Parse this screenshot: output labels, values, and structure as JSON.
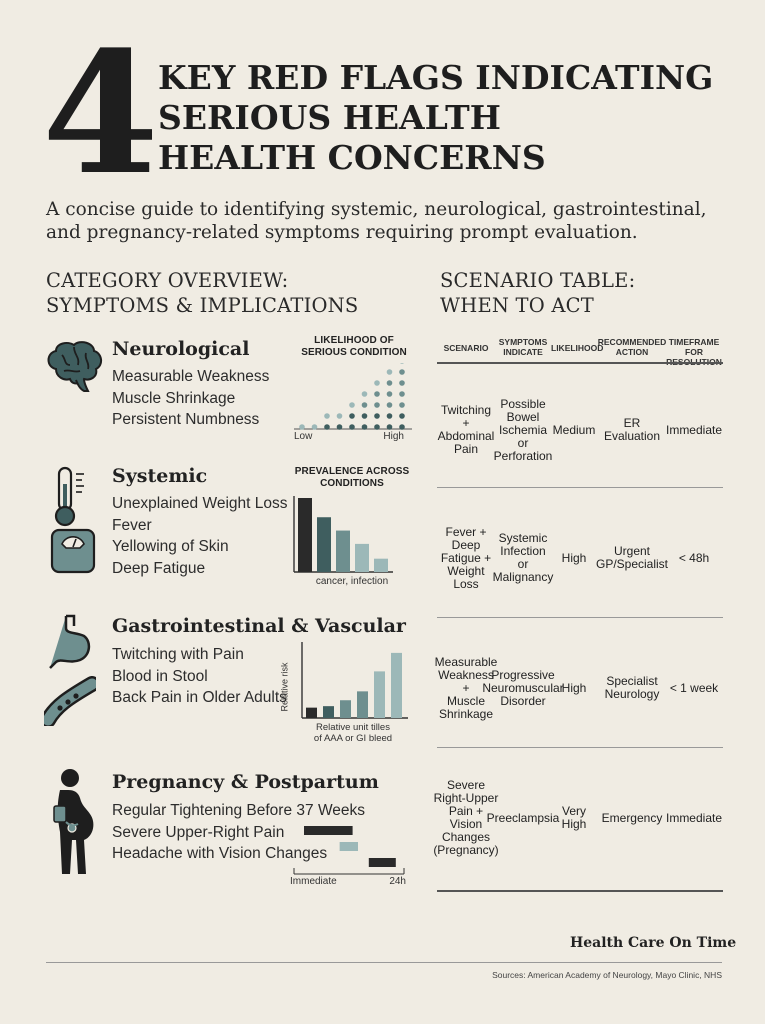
{
  "header": {
    "number": "4",
    "title_lines": [
      "KEY RED FLAGS INDICATING",
      "SERIOUS HEALTH",
      "HEALTH CONCERNS"
    ],
    "subtitle_lines": [
      "A concise guide to identifying systemic, neurological, gastrointestinal,",
      "and pregnancy-related symptoms requiring prompt evaluation."
    ]
  },
  "left_section": {
    "heading_lines": [
      "CATEGORY OVERVIEW:",
      "SYMPTOMS & IMPLICATIONS"
    ],
    "categories": [
      {
        "title": "Neurological",
        "icon": "brain-icon",
        "items": [
          "Measurable Weakness",
          "Muscle Shrinkage",
          "Persistent Numbness"
        ],
        "chart_title_lines": [
          "LIKELIHOOD OF",
          "SERIOUS CONDITION"
        ],
        "axis_low": "Low",
        "axis_high": "High"
      },
      {
        "title": "Systemic",
        "icons": [
          "thermometer-icon",
          "scale-icon"
        ],
        "items": [
          "Unexplained Weight Loss",
          "Fever",
          "Yellowing of Skin",
          "Deep Fatigue"
        ],
        "chart_title_lines": [
          "PREVALENCE ACROSS",
          "CONDITIONS"
        ],
        "chart_caption": "cancer, infection"
      },
      {
        "title": "Gastrointestinal & Vascular",
        "icons": [
          "stomach-icon",
          "blood-vessel-icon"
        ],
        "items": [
          "Twitching with Pain",
          "Blood in Stool",
          "Back Pain in Older Adults"
        ],
        "chart_ylabel": "Relative risk",
        "chart_caption_lines": [
          "Relative unit tilles",
          "of AAA or GI bleed"
        ]
      },
      {
        "title": "Pregnancy & Postpartum",
        "icon": "pregnant-woman-icon",
        "items": [
          "Regular Tightening Before 37 Weeks",
          "Severe Upper-Right Pain",
          "Headache with Vision Changes"
        ],
        "axis_start": "Immediate",
        "axis_end": "24h"
      }
    ]
  },
  "right_section": {
    "heading_lines": [
      "SCENARIO TABLE:",
      "WHEN TO ACT"
    ],
    "columns": [
      [
        "SCENARIO"
      ],
      [
        "SYMPTOMS",
        "INDICATE"
      ],
      [
        "LIKELIHOOD"
      ],
      [
        "RECOMMENDED",
        "ACTION"
      ],
      [
        "TIMEFRAME FOR",
        "RESOLUTION"
      ]
    ],
    "rows": [
      {
        "scenario": [
          "Twitching",
          "+",
          "Abdominal",
          "Pain"
        ],
        "indicates": [
          "Possible",
          "Bowel",
          "Ischemia",
          "or",
          "Perforation"
        ],
        "likelihood": [
          "Medium"
        ],
        "action": [
          "ER",
          "Evaluation"
        ],
        "timeframe": [
          "Immediate"
        ]
      },
      {
        "scenario": [
          "Fever +",
          "Deep",
          "Fatigue +",
          "Weight",
          "Loss"
        ],
        "indicates": [
          "Systemic",
          "Infection",
          "or",
          "Malignancy"
        ],
        "likelihood": [
          "High"
        ],
        "action": [
          "Urgent",
          "GP/Specialist"
        ],
        "timeframe": [
          "< 48h"
        ]
      },
      {
        "scenario": [
          "Measurable",
          "Weakness",
          "+",
          "Muscle",
          "Shrinkage"
        ],
        "indicates": [
          "Progressive",
          "Neuromuscular",
          "Disorder"
        ],
        "likelihood": [
          "High"
        ],
        "action": [
          "Specialist",
          "Neurology"
        ],
        "timeframe": [
          "< 1 week"
        ]
      },
      {
        "scenario": [
          "Severe",
          "Right-Upper",
          "Pain +",
          "Vision",
          "Changes",
          "(Pregnancy)"
        ],
        "indicates": [
          "Preeclampsia"
        ],
        "likelihood": [
          "Very",
          "High"
        ],
        "action": [
          "Emergency"
        ],
        "timeframe": [
          "Immediate"
        ]
      }
    ]
  },
  "footer": {
    "brand": "Health Care On Time",
    "sources": "Sources: American Academy of Neurology, Mayo Clinic, NHS"
  },
  "colors": {
    "background": "#f0ece3",
    "ink": "#1e1e1e",
    "teal_dark": "#3f5e5f",
    "teal_mid": "#6e8f8f",
    "teal_light": "#9cb8b8"
  },
  "chart_data": [
    {
      "type": "scatter",
      "title": "LIKELIHOOD OF SERIOUS CONDITION",
      "xlabel": "",
      "ylabel": "",
      "x_ticks": [
        "Low",
        "High"
      ],
      "column_heights": [
        1,
        1,
        2,
        2,
        3,
        4,
        5,
        6,
        7
      ]
    },
    {
      "type": "bar",
      "title": "PREVALENCE ACROSS CONDITIONS",
      "xlabel": "cancer, infection",
      "ylabel": "",
      "values": [
        100,
        74,
        56,
        38,
        18
      ],
      "ylim": [
        0,
        100
      ]
    },
    {
      "type": "bar",
      "title": "",
      "xlabel": "",
      "ylabel": "Relative risk",
      "values": [
        14,
        16,
        24,
        36,
        63,
        88
      ],
      "ylim": [
        0,
        100
      ]
    },
    {
      "type": "bar",
      "orientation": "horizontal",
      "title": "",
      "xlabel": "",
      "ylabel": "",
      "x_ticks": [
        "Immediate",
        "24h"
      ],
      "ranges": [
        [
          0,
          0.45
        ],
        [
          0.33,
          0.5
        ],
        [
          0.6,
          0.85
        ]
      ]
    }
  ]
}
